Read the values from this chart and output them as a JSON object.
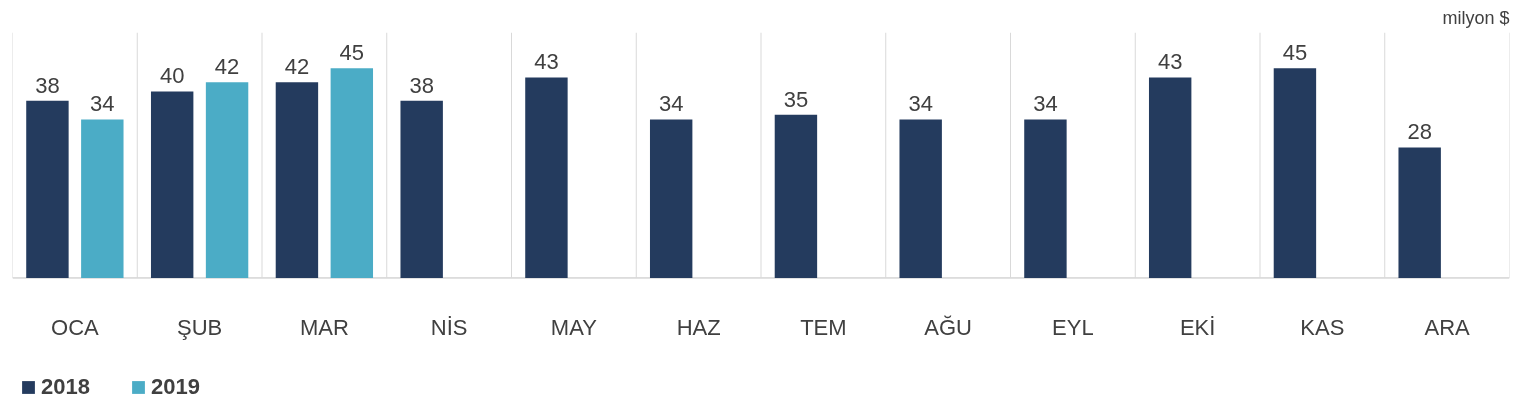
{
  "chart_data": {
    "type": "bar",
    "categories": [
      "OCA",
      "ŞUB",
      "MAR",
      "NİS",
      "MAY",
      "HAZ",
      "TEM",
      "AĞU",
      "EYL",
      "EKİ",
      "KAS",
      "ARA"
    ],
    "series": [
      {
        "name": "2018",
        "color": "#243b5e",
        "values": [
          38,
          40,
          42,
          38,
          43,
          34,
          35,
          34,
          34,
          43,
          45,
          28
        ]
      },
      {
        "name": "2019",
        "color": "#4bacc6",
        "values": [
          34,
          42,
          45,
          null,
          null,
          null,
          null,
          null,
          null,
          null,
          null,
          null
        ]
      }
    ],
    "data_labels": true,
    "grid": "x",
    "legend": "bottom left",
    "annotations": [
      "milyon $"
    ]
  }
}
